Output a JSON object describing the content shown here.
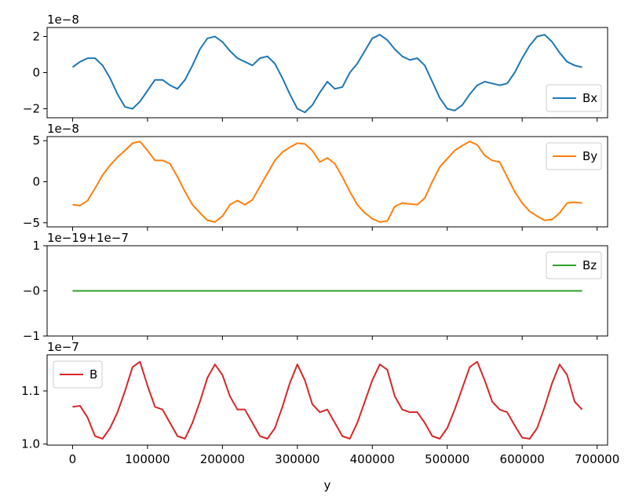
{
  "chart_data": [
    {
      "type": "line",
      "offset_text": "1e−8",
      "ylim": [
        -2.5,
        2.5
      ],
      "yticks": [
        {
          "value": -2,
          "label": "−2"
        },
        {
          "value": 0,
          "label": "0"
        },
        {
          "value": 2,
          "label": "2"
        }
      ],
      "legend_position": "lower-right",
      "series": [
        {
          "name": "Bx",
          "color": "#1f77b4",
          "x": [
            0,
            10000,
            20000,
            30000,
            40000,
            50000,
            60000,
            70000,
            80000,
            90000,
            100000,
            110000,
            120000,
            130000,
            140000,
            150000,
            160000,
            170000,
            180000,
            190000,
            200000,
            210000,
            220000,
            230000,
            240000,
            250000,
            260000,
            270000,
            280000,
            290000,
            300000,
            310000,
            320000,
            330000,
            340000,
            350000,
            360000,
            370000,
            380000,
            390000,
            400000,
            410000,
            420000,
            430000,
            440000,
            450000,
            460000,
            470000,
            480000,
            490000,
            500000,
            510000,
            520000,
            530000,
            540000,
            550000,
            560000,
            570000,
            580000,
            590000,
            600000,
            610000,
            620000,
            630000,
            640000,
            650000,
            660000,
            670000,
            680000
          ],
          "y": [
            0.3,
            0.6,
            0.8,
            0.8,
            0.4,
            -0.3,
            -1.2,
            -1.9,
            -2.0,
            -1.6,
            -1.0,
            -0.4,
            -0.4,
            -0.7,
            -0.9,
            -0.4,
            0.4,
            1.3,
            1.9,
            2.0,
            1.7,
            1.2,
            0.8,
            0.6,
            0.4,
            0.8,
            0.9,
            0.5,
            -0.3,
            -1.2,
            -2.0,
            -2.2,
            -1.8,
            -1.1,
            -0.5,
            -0.9,
            -0.8,
            0.0,
            0.5,
            1.2,
            1.9,
            2.1,
            1.8,
            1.3,
            0.9,
            0.7,
            0.8,
            0.4,
            -0.5,
            -1.4,
            -2.0,
            -2.1,
            -1.8,
            -1.2,
            -0.7,
            -0.5,
            -0.6,
            -0.7,
            -0.6,
            0.0,
            0.8,
            1.5,
            2.0,
            2.1,
            1.7,
            1.1,
            0.6,
            0.4,
            0.3
          ]
        }
      ]
    },
    {
      "type": "line",
      "offset_text": "1e−8",
      "ylim": [
        -5.5,
        5.5
      ],
      "yticks": [
        {
          "value": -5,
          "label": "−5"
        },
        {
          "value": 0,
          "label": "0"
        },
        {
          "value": 5,
          "label": "5"
        }
      ],
      "legend_position": "upper-right",
      "series": [
        {
          "name": "By",
          "color": "#ff7f0e",
          "x": [
            0,
            10000,
            20000,
            30000,
            40000,
            50000,
            60000,
            70000,
            80000,
            90000,
            100000,
            110000,
            120000,
            130000,
            140000,
            150000,
            160000,
            170000,
            180000,
            190000,
            200000,
            210000,
            220000,
            230000,
            240000,
            250000,
            260000,
            270000,
            280000,
            290000,
            300000,
            310000,
            320000,
            330000,
            340000,
            350000,
            360000,
            370000,
            380000,
            390000,
            400000,
            410000,
            420000,
            430000,
            440000,
            450000,
            460000,
            470000,
            480000,
            490000,
            500000,
            510000,
            520000,
            530000,
            540000,
            550000,
            560000,
            570000,
            580000,
            590000,
            600000,
            610000,
            620000,
            630000,
            640000,
            650000,
            660000,
            670000,
            680000
          ],
          "y": [
            -2.8,
            -2.9,
            -2.3,
            -0.8,
            0.8,
            2.0,
            3.0,
            3.8,
            4.7,
            4.9,
            3.8,
            2.6,
            2.6,
            2.2,
            0.6,
            -1.2,
            -2.8,
            -3.8,
            -4.7,
            -4.9,
            -4.2,
            -2.8,
            -2.3,
            -2.8,
            -2.2,
            -0.6,
            1.0,
            2.6,
            3.6,
            4.2,
            4.7,
            4.6,
            3.8,
            2.4,
            2.9,
            2.2,
            0.6,
            -1.2,
            -2.8,
            -3.8,
            -4.5,
            -4.9,
            -4.8,
            -3.0,
            -2.6,
            -2.7,
            -2.8,
            -2.0,
            0.0,
            1.8,
            2.8,
            3.8,
            4.4,
            4.9,
            4.5,
            3.2,
            2.6,
            2.4,
            0.6,
            -1.2,
            -2.6,
            -3.6,
            -4.2,
            -4.7,
            -4.6,
            -3.8,
            -2.6,
            -2.5,
            -2.6
          ]
        }
      ]
    },
    {
      "type": "line",
      "offset_text": "1e−19+1e−7",
      "ylim": [
        -1,
        1
      ],
      "yticks": [
        {
          "value": -1,
          "label": "−1"
        },
        {
          "value": 0,
          "label": "−0"
        },
        {
          "value": 1,
          "label": "1"
        }
      ],
      "legend_position": "upper-right",
      "series": [
        {
          "name": "Bz",
          "color": "#2ca02c",
          "x": [
            0,
            680000
          ],
          "y": [
            0,
            0
          ]
        }
      ]
    },
    {
      "type": "line",
      "offset_text": "1e−7",
      "ylim": [
        0.998,
        1.168
      ],
      "yticks": [
        {
          "value": 1.0,
          "label": "1.0"
        },
        {
          "value": 1.1,
          "label": "1.1"
        }
      ],
      "legend_position": "upper-left",
      "xlabel": "y",
      "xlim": [
        -34000,
        714000
      ],
      "xticks": [
        {
          "value": 0,
          "label": "0"
        },
        {
          "value": 100000,
          "label": "100000"
        },
        {
          "value": 200000,
          "label": "200000"
        },
        {
          "value": 300000,
          "label": "300000"
        },
        {
          "value": 400000,
          "label": "400000"
        },
        {
          "value": 500000,
          "label": "500000"
        },
        {
          "value": 600000,
          "label": "600000"
        },
        {
          "value": 700000,
          "label": "700000"
        }
      ],
      "series": [
        {
          "name": "B",
          "color": "#d62728",
          "x": [
            0,
            10000,
            20000,
            30000,
            40000,
            50000,
            60000,
            70000,
            80000,
            90000,
            100000,
            110000,
            120000,
            130000,
            140000,
            150000,
            160000,
            170000,
            180000,
            190000,
            200000,
            210000,
            220000,
            230000,
            240000,
            250000,
            260000,
            270000,
            280000,
            290000,
            300000,
            310000,
            320000,
            330000,
            340000,
            350000,
            360000,
            370000,
            380000,
            390000,
            400000,
            410000,
            420000,
            430000,
            440000,
            450000,
            460000,
            470000,
            480000,
            490000,
            500000,
            510000,
            520000,
            530000,
            540000,
            550000,
            560000,
            570000,
            580000,
            590000,
            600000,
            610000,
            620000,
            630000,
            640000,
            650000,
            660000,
            670000,
            680000
          ],
          "y": [
            1.07,
            1.072,
            1.05,
            1.015,
            1.01,
            1.03,
            1.06,
            1.1,
            1.145,
            1.155,
            1.11,
            1.07,
            1.065,
            1.04,
            1.015,
            1.01,
            1.04,
            1.08,
            1.125,
            1.15,
            1.13,
            1.09,
            1.065,
            1.065,
            1.04,
            1.015,
            1.01,
            1.03,
            1.07,
            1.115,
            1.15,
            1.12,
            1.075,
            1.06,
            1.065,
            1.04,
            1.015,
            1.01,
            1.04,
            1.08,
            1.12,
            1.15,
            1.14,
            1.09,
            1.065,
            1.06,
            1.06,
            1.04,
            1.015,
            1.01,
            1.03,
            1.065,
            1.105,
            1.145,
            1.155,
            1.12,
            1.08,
            1.065,
            1.06,
            1.035,
            1.012,
            1.01,
            1.03,
            1.07,
            1.115,
            1.15,
            1.13,
            1.08,
            1.065
          ]
        }
      ]
    }
  ]
}
